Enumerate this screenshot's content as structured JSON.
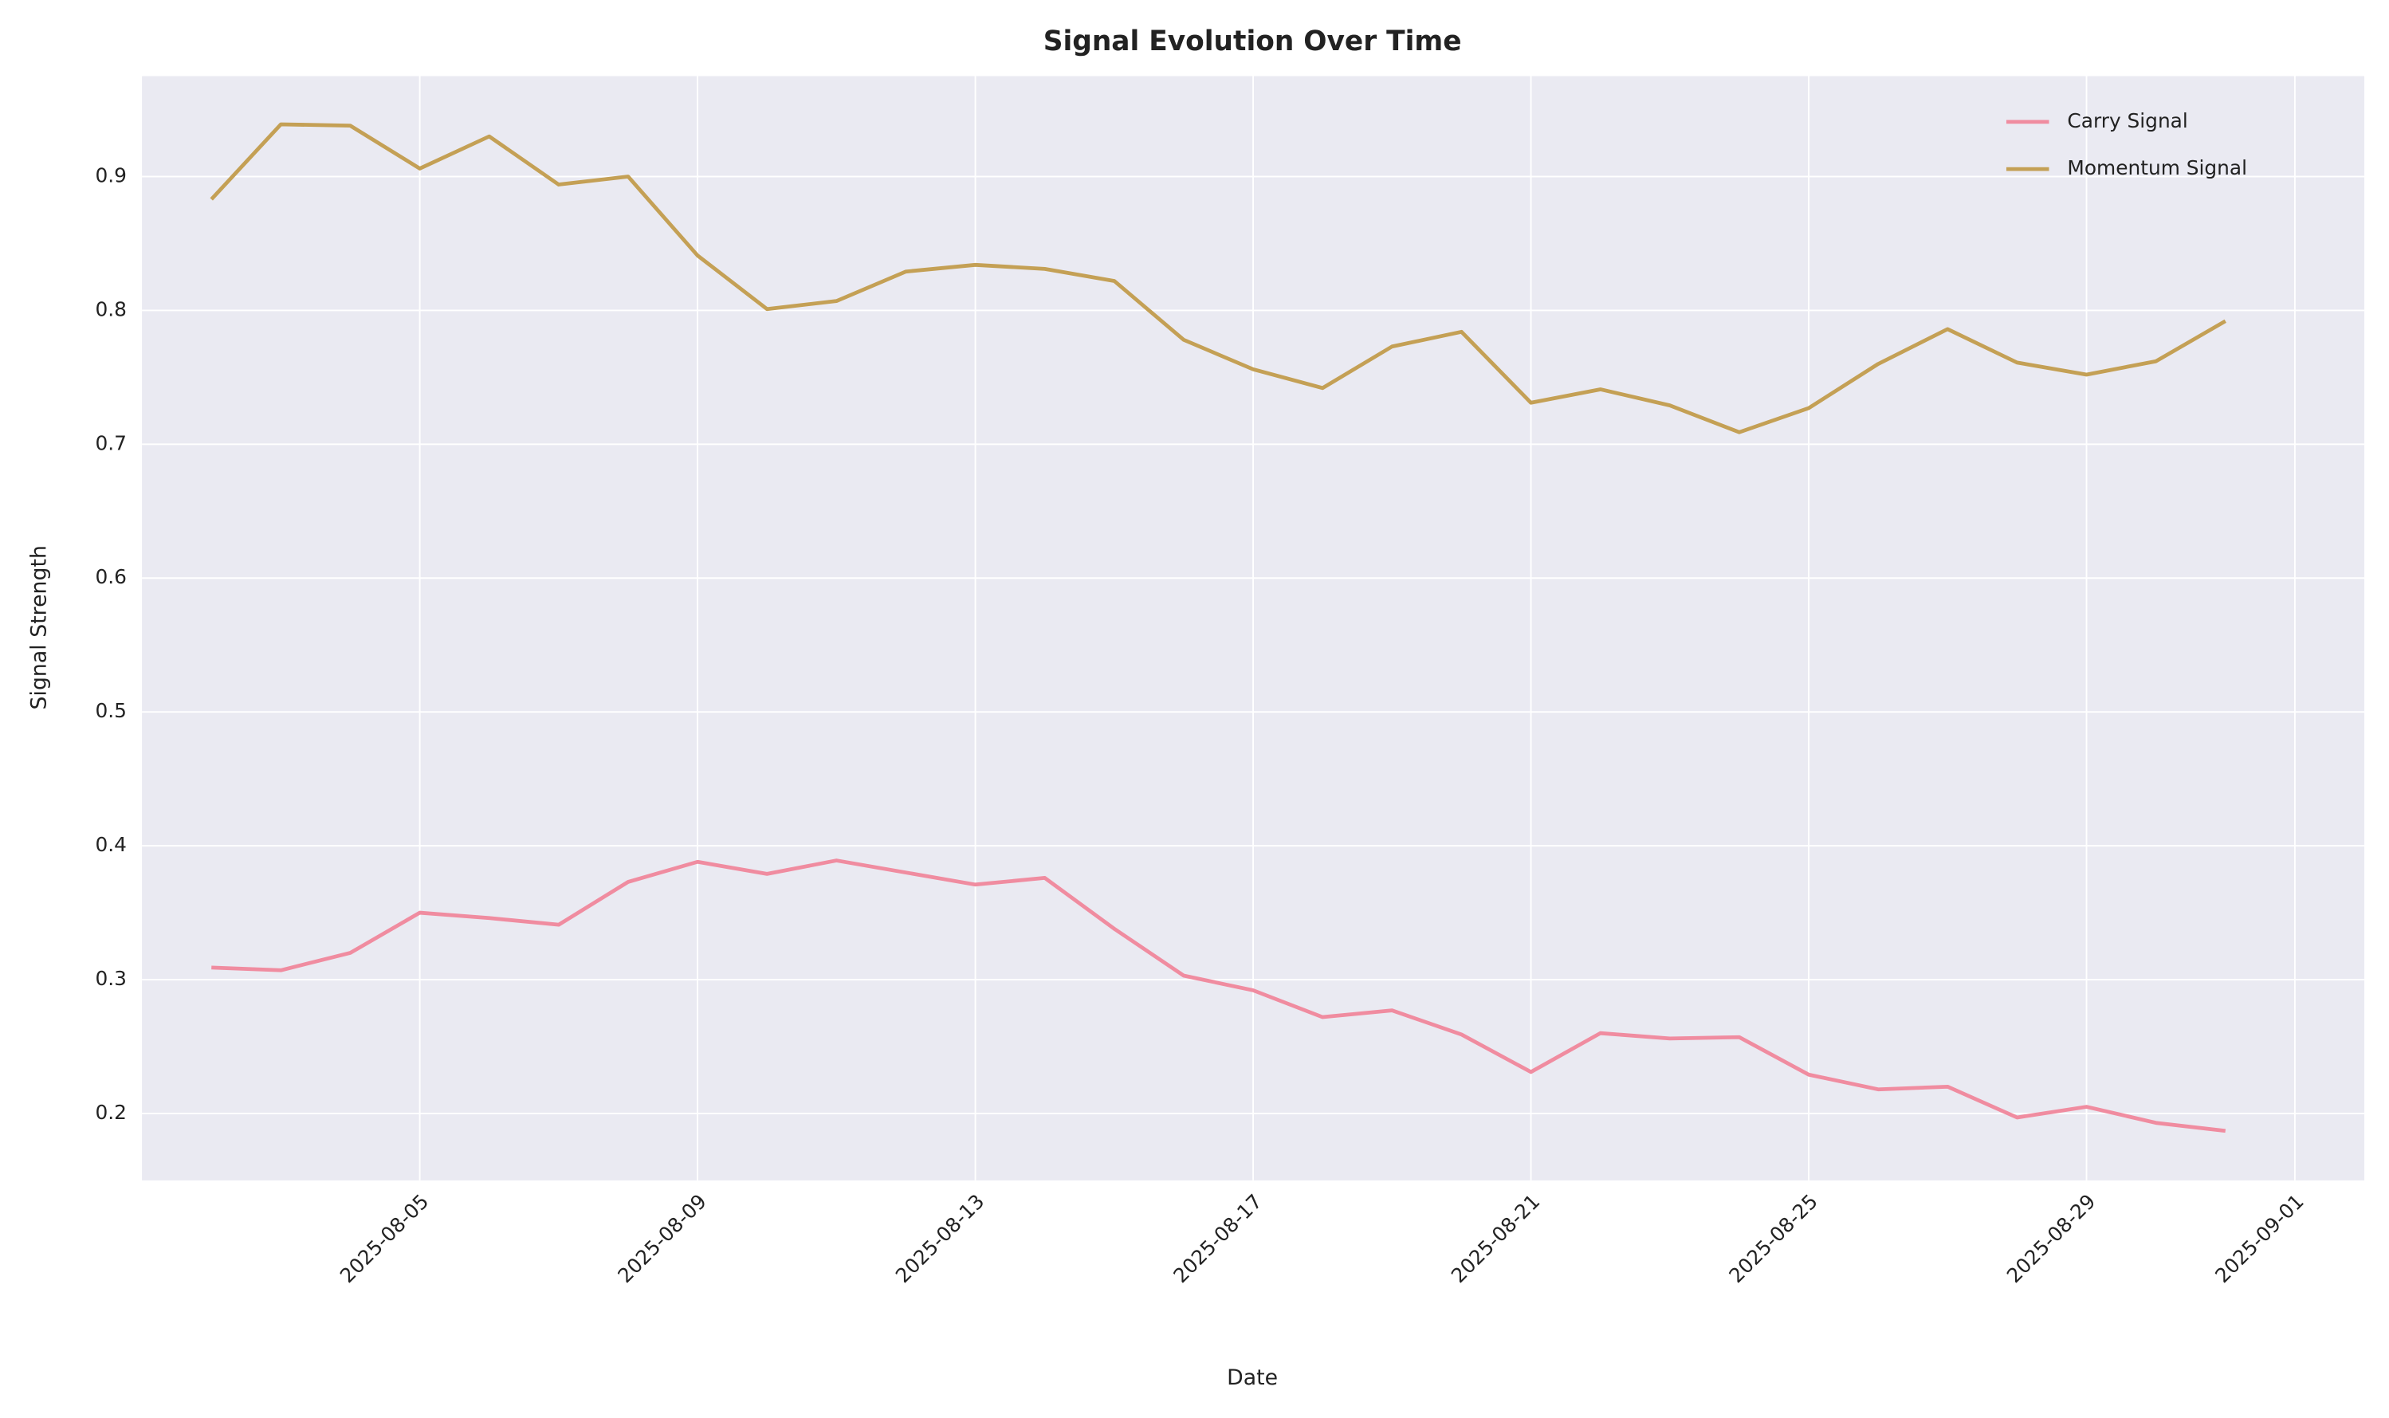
{
  "chart_data": {
    "type": "line",
    "title": "Signal Evolution Over Time",
    "xlabel": "Date",
    "ylabel": "Signal Strength",
    "x": [
      "2025-08-02",
      "2025-08-03",
      "2025-08-04",
      "2025-08-05",
      "2025-08-06",
      "2025-08-07",
      "2025-08-08",
      "2025-08-09",
      "2025-08-10",
      "2025-08-11",
      "2025-08-12",
      "2025-08-13",
      "2025-08-14",
      "2025-08-15",
      "2025-08-16",
      "2025-08-17",
      "2025-08-18",
      "2025-08-19",
      "2025-08-20",
      "2025-08-21",
      "2025-08-22",
      "2025-08-23",
      "2025-08-24",
      "2025-08-25",
      "2025-08-26",
      "2025-08-27",
      "2025-08-28",
      "2025-08-29",
      "2025-08-30",
      "2025-08-31"
    ],
    "series": [
      {
        "name": "Carry Signal",
        "color": "#f08ca0",
        "values": [
          0.309,
          0.307,
          0.32,
          0.35,
          0.346,
          0.341,
          0.373,
          0.388,
          0.379,
          0.389,
          0.38,
          0.371,
          0.376,
          0.338,
          0.303,
          0.292,
          0.272,
          0.277,
          0.259,
          0.231,
          0.26,
          0.256,
          0.257,
          0.229,
          0.218,
          0.22,
          0.197,
          0.205,
          0.193,
          0.187
        ]
      },
      {
        "name": "Momentum Signal",
        "color": "#c4a055",
        "values": [
          0.883,
          0.939,
          0.938,
          0.906,
          0.93,
          0.894,
          0.9,
          0.841,
          0.801,
          0.807,
          0.829,
          0.834,
          0.831,
          0.822,
          0.778,
          0.756,
          0.742,
          0.773,
          0.784,
          0.731,
          0.741,
          0.729,
          0.709,
          0.727,
          0.76,
          0.786,
          0.761,
          0.752,
          0.762,
          0.792
        ]
      }
    ],
    "xlim": [
      "2025-08-01",
      "2025-09-02"
    ],
    "xticks": [
      "2025-08-05",
      "2025-08-09",
      "2025-08-13",
      "2025-08-17",
      "2025-08-21",
      "2025-08-25",
      "2025-08-29",
      "2025-09-01"
    ],
    "ylim": [
      0.15,
      0.975
    ],
    "yticks": [
      0.2,
      0.3,
      0.4,
      0.5,
      0.6,
      0.7,
      0.8,
      0.9
    ],
    "grid": true,
    "legend": "upper right"
  }
}
